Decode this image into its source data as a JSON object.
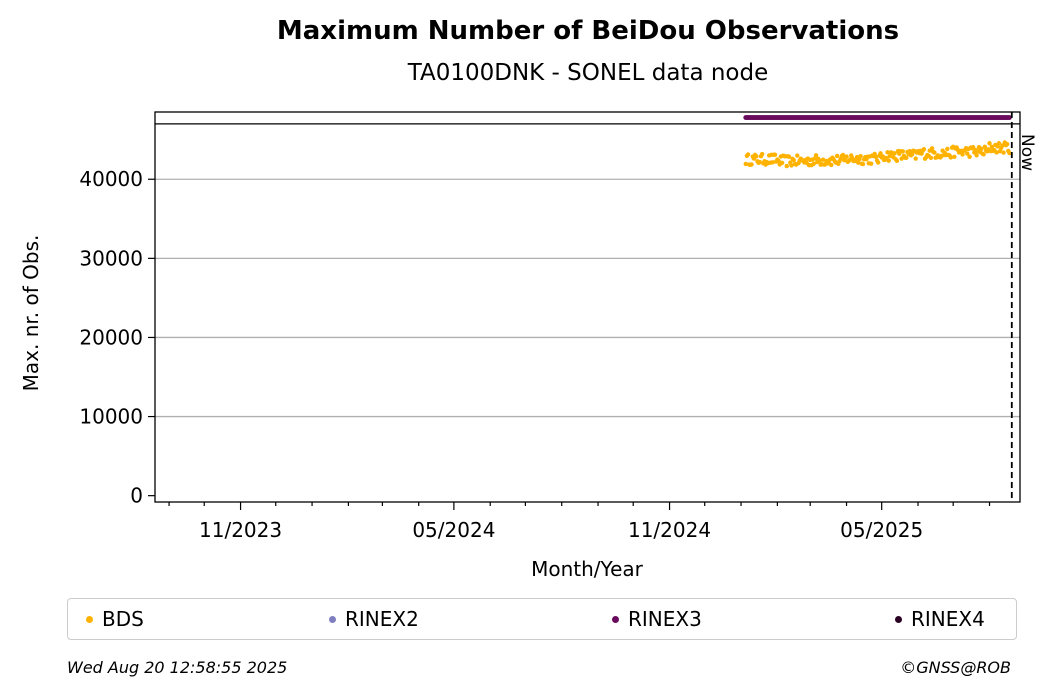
{
  "chart_data": {
    "type": "scatter",
    "title": "Maximum Number of BeiDou Observations",
    "subtitle": "TA0100DNK - SONEL data node",
    "xlabel": "Month/Year",
    "ylabel": "Max. nr. of Obs.",
    "x_tick_labels": [
      "11/2023",
      "05/2024",
      "11/2024",
      "05/2025"
    ],
    "y_tick_labels": [
      "0",
      "10000",
      "20000",
      "30000",
      "40000"
    ],
    "y_ticks": [
      0,
      10000,
      20000,
      30000,
      40000
    ],
    "ylim": [
      -800,
      48500
    ],
    "xlim": [
      "2023-08-20",
      "2025-08-27"
    ],
    "grid": "horizontal",
    "now_label": "Now",
    "now_date": "2025-08-20",
    "upper_limit_line": 47000,
    "series": [
      {
        "name": "BDS",
        "color": "#ffb200",
        "points_summary": {
          "x_start": "2025-01-05",
          "x_end": "2025-08-18",
          "y_values_by_month": {
            "2025-01": 42500,
            "2025-02": 42300,
            "2025-03": 42400,
            "2025-04": 42600,
            "2025-05": 43000,
            "2025-06": 43300,
            "2025-07": 43500,
            "2025-08": 44000
          }
        }
      },
      {
        "name": "RINEX2",
        "color": "#7f7fbf"
      },
      {
        "name": "RINEX3",
        "color": "#6a0a5c",
        "points_summary": {
          "x_start": "2025-01-05",
          "x_end": "2025-08-18",
          "y": 47800
        }
      },
      {
        "name": "RINEX4",
        "color": "#2a0022"
      }
    ],
    "legend_position": "bottom"
  },
  "footer": {
    "timestamp": "Wed Aug 20 12:58:55 2025",
    "credit": "©GNSS@ROB"
  }
}
